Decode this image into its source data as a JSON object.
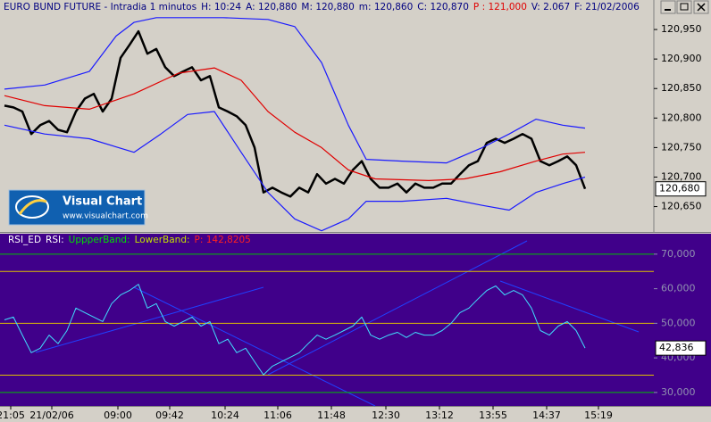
{
  "chart_data": [
    {
      "type": "line",
      "title": "EURO BUND FUTURE - Intradia 1 minutos",
      "info": [
        {
          "text": "H: 10:24",
          "color": "#000080"
        },
        {
          "text": "A: 120,880",
          "color": "#000080"
        },
        {
          "text": "M: 120,880",
          "color": "#000080"
        },
        {
          "text": "m: 120,860",
          "color": "#000080"
        },
        {
          "text": "C: 120,870",
          "color": "#000080"
        },
        {
          "text": "P : 121,000",
          "color": "#e00000"
        },
        {
          "text": "V: 2.067",
          "color": "#000080"
        },
        {
          "text": "F: 21/02/2006",
          "color": "#000080"
        }
      ],
      "watermark": {
        "title": "Visual Chart",
        "url": "www.visualchart.com"
      },
      "xlim": [
        -0.5,
        72.7
      ],
      "ylim": [
        120.607,
        121.0
      ],
      "yticks": [
        {
          "value": 120.95,
          "label": "120,950"
        },
        {
          "value": 120.9,
          "label": "120,900"
        },
        {
          "value": 120.85,
          "label": "120,850"
        },
        {
          "value": 120.8,
          "label": "120,800"
        },
        {
          "value": 120.75,
          "label": "120,750"
        },
        {
          "value": 120.7,
          "label": "120,700"
        },
        {
          "value": 120.65,
          "label": "120,650"
        }
      ],
      "last": {
        "value": 120.68,
        "label": "120,680"
      },
      "series": [
        {
          "color": "#000000",
          "width": 2.5,
          "x": [
            0,
            1,
            2,
            3,
            4,
            5,
            6,
            7,
            8,
            9,
            10,
            11,
            12,
            13,
            14,
            15,
            16,
            17,
            18,
            19,
            20,
            21,
            22,
            23,
            24,
            25,
            26,
            27,
            28,
            29,
            30,
            31,
            32,
            33,
            34,
            35,
            36,
            37,
            38,
            39,
            40,
            41,
            42,
            43,
            44,
            45,
            46,
            47,
            48,
            49,
            50,
            51,
            52,
            53,
            54,
            55,
            56,
            57,
            58,
            59,
            60,
            61,
            62,
            63,
            64,
            65
          ],
          "values": [
            120.821,
            120.818,
            120.811,
            120.773,
            120.788,
            120.795,
            120.78,
            120.776,
            120.811,
            120.833,
            120.841,
            120.811,
            120.833,
            120.902,
            120.924,
            120.947,
            120.909,
            120.917,
            120.886,
            120.871,
            120.879,
            120.886,
            120.864,
            120.871,
            120.818,
            120.811,
            120.803,
            120.788,
            120.75,
            120.674,
            120.682,
            120.674,
            120.667,
            120.682,
            120.674,
            120.705,
            120.689,
            120.697,
            120.689,
            120.712,
            120.727,
            120.697,
            120.682,
            120.682,
            120.689,
            120.674,
            120.689,
            120.682,
            120.682,
            120.689,
            120.689,
            120.705,
            120.72,
            120.727,
            120.758,
            120.765,
            120.758,
            120.765,
            120.773,
            120.765,
            120.727,
            120.72,
            120.727,
            120.735,
            120.72,
            120.68
          ]
        },
        {
          "color": "#1a1aff",
          "width": 1.2,
          "x": [
            0,
            4.5,
            9.5,
            12.5,
            14.5,
            17,
            19.5,
            24.5,
            29.5,
            32.5,
            35.5,
            38.5,
            40.5,
            44.5,
            49.5,
            53.5,
            56.5,
            59.5,
            62.5,
            65
          ],
          "values": [
            120.849,
            120.856,
            120.879,
            120.939,
            120.962,
            120.97,
            120.97,
            120.97,
            120.967,
            120.955,
            120.894,
            120.788,
            120.73,
            120.727,
            120.724,
            120.75,
            120.773,
            120.798,
            120.788,
            120.783
          ]
        },
        {
          "color": "#e00000",
          "width": 1.2,
          "x": [
            0,
            4.5,
            9.5,
            14.5,
            19.5,
            23.5,
            26.5,
            29.5,
            32.5,
            35.5,
            38.5,
            41.5,
            47.5,
            51.5,
            55.5,
            59.5,
            62.5,
            65
          ],
          "values": [
            120.838,
            120.821,
            120.815,
            120.841,
            120.876,
            120.885,
            120.864,
            120.811,
            120.776,
            120.75,
            120.712,
            120.697,
            120.694,
            120.697,
            120.709,
            120.727,
            120.739,
            120.742
          ]
        },
        {
          "color": "#1a1aff",
          "width": 1.2,
          "x": [
            0,
            4.5,
            9.5,
            14.5,
            17.5,
            20.5,
            23.5,
            26.5,
            29.5,
            32.5,
            35.5,
            38.5,
            40.5,
            44.5,
            49.5,
            53.5,
            56.5,
            59.5,
            62.5,
            65
          ],
          "values": [
            120.788,
            120.773,
            120.765,
            120.742,
            120.773,
            120.806,
            120.811,
            120.742,
            120.674,
            120.629,
            120.609,
            120.629,
            120.659,
            120.659,
            120.664,
            120.652,
            120.644,
            120.674,
            120.689,
            120.7
          ]
        }
      ]
    },
    {
      "type": "line",
      "info": [
        {
          "text": "RSI_ED",
          "color": "#ffffff"
        },
        {
          "text": "RSI:",
          "color": "#ffffff"
        },
        {
          "text": "UppperBand:",
          "color": "#00e000"
        },
        {
          "text": "LowerBand:",
          "color": "#c0e000"
        },
        {
          "text": "P: 142,8205",
          "color": "#ff2020"
        }
      ],
      "xlim": [
        -0.5,
        72.7
      ],
      "ylim": [
        26.1,
        75.9
      ],
      "yticks": [
        {
          "value": 70,
          "label": "70,000"
        },
        {
          "value": 60,
          "label": "60,000"
        },
        {
          "value": 50,
          "label": "50,000"
        },
        {
          "value": 40,
          "label": "40,000"
        },
        {
          "value": 30,
          "label": "30,000"
        }
      ],
      "levels": [
        {
          "value": 70,
          "color": "#00c000"
        },
        {
          "value": 65,
          "color": "#e0c000"
        },
        {
          "value": 50,
          "color": "#e0c000"
        },
        {
          "value": 35,
          "color": "#e0c000"
        },
        {
          "value": 30,
          "color": "#00c000"
        }
      ],
      "xticks": [
        {
          "value": 0.7,
          "label": "21:05"
        },
        {
          "value": 5.3,
          "label": "21/02/06"
        },
        {
          "value": 12.7,
          "label": "09:00"
        },
        {
          "value": 18.5,
          "label": "09:42"
        },
        {
          "value": 24.7,
          "label": "10:24"
        },
        {
          "value": 30.6,
          "label": "11:06"
        },
        {
          "value": 36.6,
          "label": "11:48"
        },
        {
          "value": 42.7,
          "label": "12:30"
        },
        {
          "value": 48.7,
          "label": "13:12"
        },
        {
          "value": 54.7,
          "label": "13:55"
        },
        {
          "value": 60.7,
          "label": "14:37"
        },
        {
          "value": 66.5,
          "label": "15:19"
        }
      ],
      "last": {
        "value": 42.836,
        "label": "42,836"
      },
      "series": [
        {
          "color": "#40e0ff",
          "width": 1,
          "x": [
            0,
            1,
            2,
            3,
            4,
            5,
            6,
            7,
            8,
            9,
            10,
            11,
            12,
            13,
            14,
            15,
            16,
            17,
            18,
            19,
            20,
            21,
            22,
            23,
            24,
            25,
            26,
            27,
            28,
            29,
            30,
            31,
            32,
            33,
            34,
            35,
            36,
            37,
            38,
            39,
            40,
            41,
            42,
            43,
            44,
            45,
            46,
            47,
            48,
            49,
            50,
            51,
            52,
            53,
            54,
            55,
            56,
            57,
            58,
            59,
            60,
            61,
            62,
            63,
            64,
            65
          ],
          "values": [
            51.0,
            51.8,
            46.6,
            41.5,
            42.8,
            46.6,
            44.1,
            47.9,
            54.4,
            53.1,
            51.8,
            50.5,
            55.7,
            58.2,
            59.5,
            61.3,
            54.4,
            55.7,
            50.5,
            49.2,
            50.5,
            51.8,
            49.2,
            50.5,
            44.1,
            45.4,
            41.5,
            42.8,
            38.9,
            35.1,
            37.6,
            38.9,
            40.2,
            41.5,
            44.1,
            46.6,
            45.4,
            46.6,
            47.9,
            49.2,
            51.8,
            46.6,
            45.4,
            46.6,
            47.4,
            45.9,
            47.4,
            46.6,
            46.6,
            47.9,
            50.0,
            53.1,
            54.4,
            57.0,
            59.5,
            60.8,
            58.2,
            59.5,
            58.2,
            54.4,
            47.9,
            46.6,
            49.2,
            50.5,
            47.9,
            42.836
          ]
        }
      ]
    }
  ]
}
